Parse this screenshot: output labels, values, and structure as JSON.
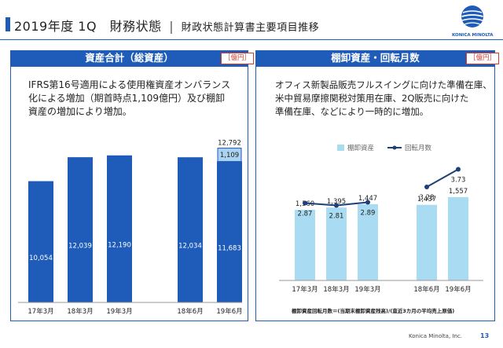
{
  "header": {
    "title": "2019年度 1Q　財務状態",
    "separator": "|",
    "subtitle": "財政状態計算書主要項目推移",
    "logo_text": "KONICA MINOLTA",
    "brand_color": "#1f5bb8"
  },
  "left_panel": {
    "title": "資産合計（総資産）",
    "unit": "［億円］",
    "note_lines": [
      "IFRS第16号適用による使用権資産オンバランス",
      "化による増加（期首時点1,109億円）及び棚卸",
      "資産の増加により増加。"
    ]
  },
  "right_panel": {
    "title": "棚卸資産・回転月数",
    "unit": "［億円］",
    "note_lines": [
      "オフィス新製品販売フルスイングに向けた準備在庫、",
      "米中貿易摩擦関税対策用在庫、2Q販売に向けた",
      "準備在庫、などにより一時的に増加。"
    ],
    "formula": "棚卸資産回転月数＝(当期末棚卸資産残高)/(直近3カ月の平均売上原価)"
  },
  "footer": {
    "company": "Konica Minolta, Inc.",
    "page": "13"
  },
  "chart_data": [
    {
      "type": "bar",
      "categories": [
        "17年3月",
        "18年3月",
        "19年3月",
        "18年6月",
        "19年6月"
      ],
      "series": [
        {
          "values": [
            10054,
            12039,
            12190,
            12034,
            11683
          ],
          "color": "#1f5bb8"
        },
        {
          "values": [
            0,
            0,
            0,
            0,
            1109
          ],
          "color": "#a9d3f0"
        }
      ],
      "data_labels": [
        "10,054",
        "12,039",
        "12,190",
        "12,034",
        "11,683",
        "1,109"
      ],
      "total_labels": [
        {
          "category": "19年6月",
          "value": 12792,
          "label": "12,792"
        }
      ],
      "stacked": true,
      "ylim": [
        0,
        14000
      ]
    },
    {
      "type": "bar",
      "categories": [
        "17年3月",
        "18年3月",
        "19年3月",
        "18年6月",
        "19年6月"
      ],
      "series": [
        {
          "name": "棚卸資産",
          "type": "bar",
          "values": [
            1360,
            1395,
            1447,
            1437,
            1557
          ],
          "labels": [
            "1,360",
            "1,395",
            "1,447",
            "1,437",
            "1,557"
          ],
          "color": "#a9dcf2"
        },
        {
          "name": "回転月数",
          "type": "line",
          "values": [
            2.87,
            2.81,
            2.89,
            3.28,
            3.73
          ],
          "labels": [
            "2.87",
            "2.81",
            "2.89",
            "3.28",
            "3.73"
          ],
          "color": "#1d3f7a"
        }
      ],
      "legend": "top-center",
      "ylim_bar": [
        0,
        1800
      ],
      "ylim_line": [
        0,
        5
      ]
    }
  ]
}
